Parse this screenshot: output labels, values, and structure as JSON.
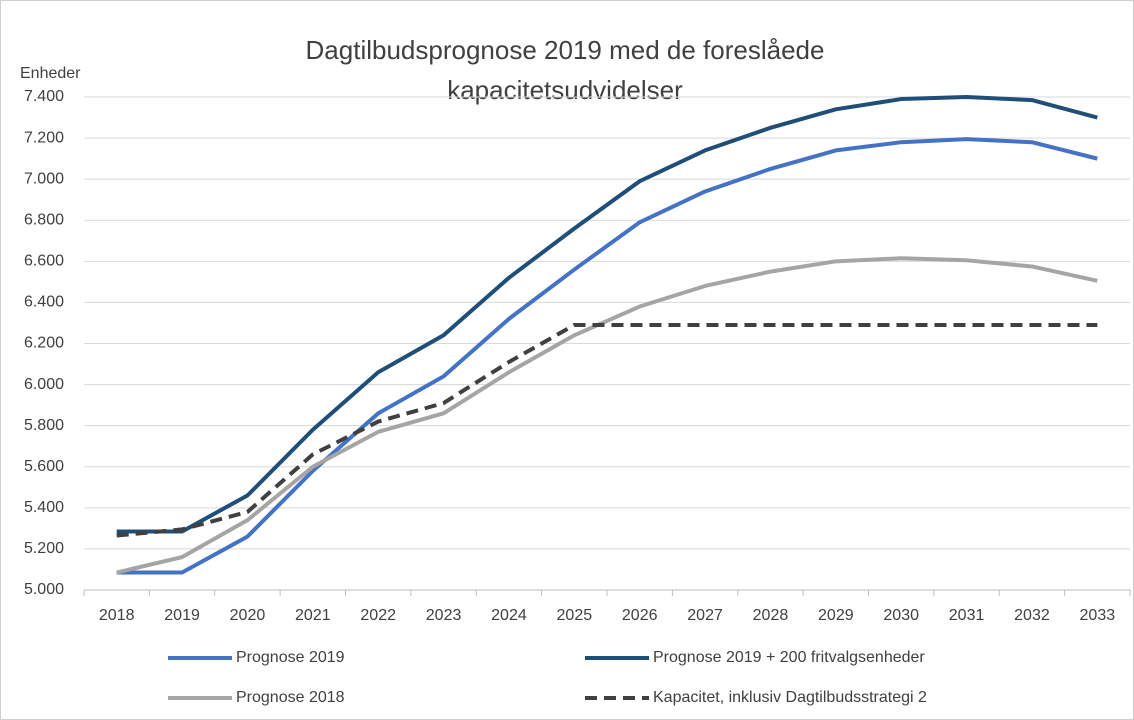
{
  "chart_data": {
    "type": "line",
    "title": [
      "Dagtilbudsprognose 2019 med de foreslåede",
      "kapacitetsudvidelser"
    ],
    "y_label": "Enheder",
    "categories": [
      "2018",
      "2019",
      "2020",
      "2021",
      "2022",
      "2023",
      "2024",
      "2025",
      "2026",
      "2027",
      "2028",
      "2029",
      "2030",
      "2031",
      "2032",
      "2033"
    ],
    "series": [
      {
        "name": "Prognose 2019",
        "color": "#4472c4",
        "dash": false,
        "values": [
          5085,
          5085,
          5260,
          5580,
          5860,
          6040,
          6320,
          6560,
          6790,
          6940,
          7050,
          7140,
          7180,
          7195,
          7180,
          7100
        ]
      },
      {
        "name": "Prognose 2019 + 200 fritvalgsenheder",
        "color": "#1f4e79",
        "dash": false,
        "values": [
          5285,
          5285,
          5460,
          5780,
          6060,
          6240,
          6520,
          6760,
          6990,
          7140,
          7250,
          7340,
          7390,
          7400,
          7385,
          7300
        ]
      },
      {
        "name": "Prognose 2018",
        "color": "#a5a5a5",
        "dash": false,
        "values": [
          5085,
          5160,
          5340,
          5600,
          5770,
          5860,
          6060,
          6240,
          6380,
          6480,
          6550,
          6600,
          6615,
          6605,
          6575,
          6505
        ]
      },
      {
        "name": "Kapacitet, inklusiv Dagtilbudsstrategi 2",
        "color": "#404040",
        "dash": true,
        "values": [
          5265,
          5295,
          5380,
          5660,
          5820,
          5910,
          6110,
          6290,
          6290,
          6290,
          6290,
          6290,
          6290,
          6290,
          6290,
          6290
        ]
      }
    ],
    "ylim": [
      5000,
      7400
    ],
    "yticks": [
      {
        "value": 5000,
        "label": "5.000"
      },
      {
        "value": 5200,
        "label": "5.200"
      },
      {
        "value": 5400,
        "label": "5.400"
      },
      {
        "value": 5600,
        "label": "5.600"
      },
      {
        "value": 5800,
        "label": "5.800"
      },
      {
        "value": 6000,
        "label": "6.000"
      },
      {
        "value": 6200,
        "label": "6.200"
      },
      {
        "value": 6400,
        "label": "6.400"
      },
      {
        "value": 6600,
        "label": "6.600"
      },
      {
        "value": 6800,
        "label": "6.800"
      },
      {
        "value": 7000,
        "label": "7.000"
      },
      {
        "value": 7200,
        "label": "7.200"
      },
      {
        "value": 7400,
        "label": "7.400"
      }
    ],
    "grid": true,
    "legend": "bottom"
  }
}
